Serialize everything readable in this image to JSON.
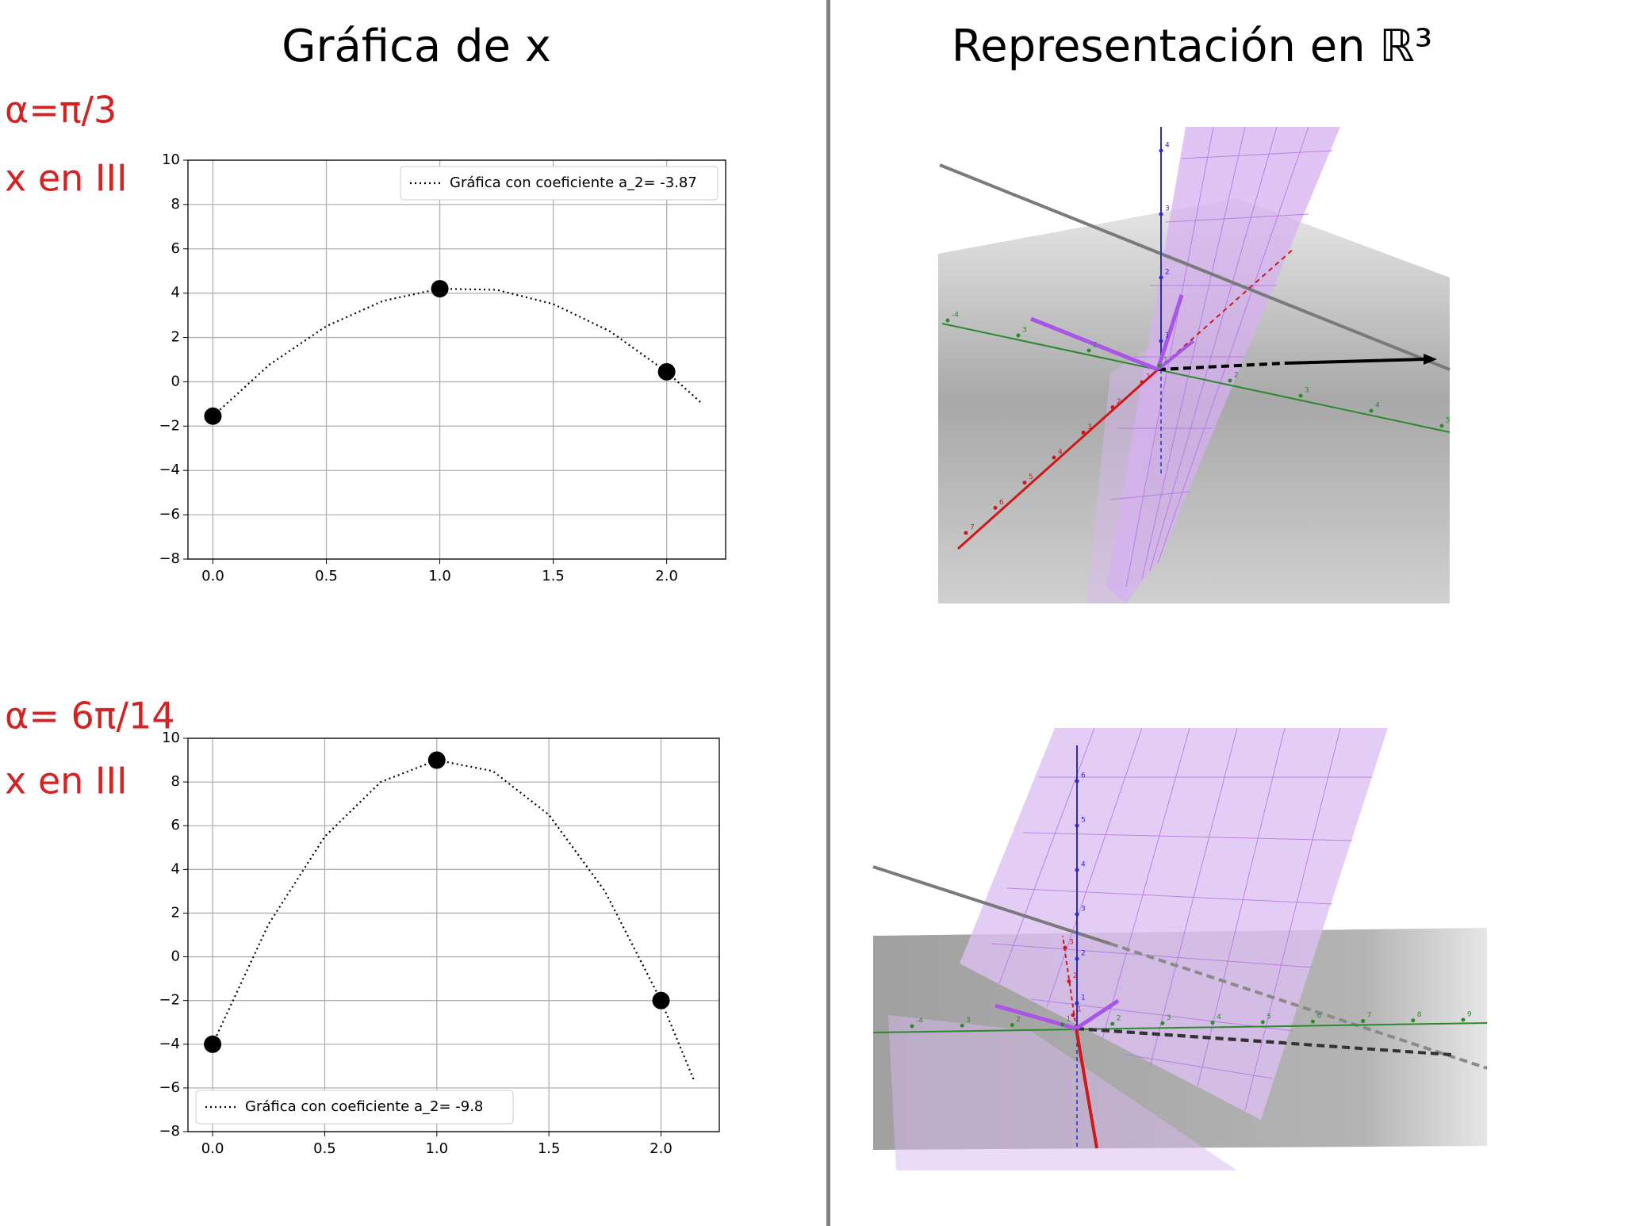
{
  "titles": {
    "left": "Gráfica de x",
    "right": "Representación en ℝ³"
  },
  "annotations": [
    {
      "alpha": "α=π/3",
      "quadrant": "x en III"
    },
    {
      "alpha": "α= 6π/14",
      "quadrant": "x en III"
    }
  ],
  "chart_data": [
    {
      "type": "line",
      "grid": true,
      "legend": "upper right",
      "xlim": [
        -0.11,
        2.26
      ],
      "ylim": [
        -8,
        10
      ],
      "xticks": [
        {
          "value": 0,
          "label": "0.0"
        },
        {
          "value": 0.5,
          "label": "0.5"
        },
        {
          "value": 1,
          "label": "1.0"
        },
        {
          "value": 1.5,
          "label": "1.5"
        },
        {
          "value": 2,
          "label": "2.0"
        }
      ],
      "yticks": [
        {
          "value": -8,
          "label": "−8"
        },
        {
          "value": -6,
          "label": "−6"
        },
        {
          "value": -4,
          "label": "−4"
        },
        {
          "value": -2,
          "label": "−2"
        },
        0,
        2,
        4,
        6,
        8,
        10
      ],
      "series": [
        {
          "name": "Gráfica con coeficiente a_2= -3.87",
          "style": "dotted",
          "color": "#000000",
          "x": [
            0,
            0.25,
            0.5,
            0.75,
            1,
            1.25,
            1.5,
            1.75,
            2,
            2.15
          ],
          "values": [
            -1.55,
            0.78,
            2.51,
            3.65,
            4.2,
            4.15,
            3.51,
            2.28,
            0.45,
            -0.93
          ]
        },
        {
          "style": "scatter",
          "color": "#000000",
          "x": [
            0,
            1,
            2
          ],
          "values": [
            -1.55,
            4.2,
            0.45
          ]
        }
      ]
    },
    {
      "type": "line",
      "grid": true,
      "legend": "lower left",
      "xlim": [
        -0.11,
        2.26
      ],
      "ylim": [
        -8,
        10
      ],
      "xticks": [
        {
          "value": 0,
          "label": "0.0"
        },
        {
          "value": 0.5,
          "label": "0.5"
        },
        {
          "value": 1,
          "label": "1.0"
        },
        {
          "value": 1.5,
          "label": "1.5"
        },
        {
          "value": 2,
          "label": "2.0"
        }
      ],
      "yticks": [
        {
          "value": -8,
          "label": "−8"
        },
        {
          "value": -6,
          "label": "−6"
        },
        {
          "value": -4,
          "label": "−4"
        },
        {
          "value": -2,
          "label": "−2"
        },
        0,
        2,
        4,
        6,
        8,
        10
      ],
      "series": [
        {
          "name": "Gráfica con coeficiente a_2= -9.8",
          "style": "dotted",
          "color": "#000000",
          "x": [
            0,
            0.25,
            0.5,
            0.75,
            1,
            1.25,
            1.5,
            1.75,
            2,
            2.15
          ],
          "values": [
            -4,
            1.5,
            5.5,
            8,
            9,
            8.5,
            6.5,
            3,
            -2,
            -5.72
          ]
        },
        {
          "style": "scatter",
          "color": "#000000",
          "x": [
            0,
            1,
            2
          ],
          "values": [
            -4,
            9,
            -2
          ]
        }
      ]
    }
  ],
  "scenes": [
    {
      "z_labels": [
        "1",
        "2",
        "3",
        "4"
      ],
      "y_labels": [
        "-4",
        "3",
        "2",
        "1",
        "2",
        "3",
        "4",
        "5"
      ],
      "x_labels": [
        "7",
        "6",
        "5",
        "4",
        "3",
        "2",
        "1"
      ]
    },
    {
      "z_labels": [
        "1",
        "2",
        "3",
        "4",
        "5",
        "6"
      ],
      "y_labels": [
        "-4",
        "3",
        "2",
        "1",
        "2",
        "3",
        "4",
        "5",
        "6",
        "7",
        "8",
        "9"
      ],
      "x_labels": [
        "1",
        "2",
        "3"
      ]
    }
  ]
}
